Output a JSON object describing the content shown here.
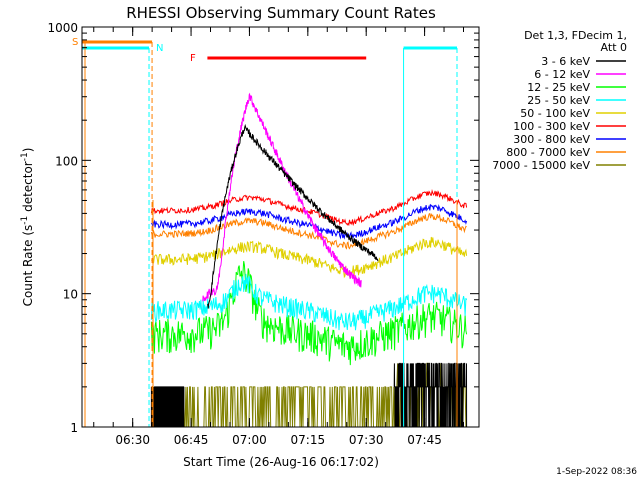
{
  "chart_data": {
    "type": "line",
    "title": "RHESSI Observing Summary Count Rates",
    "xlabel": "Start Time (26-Aug-16 06:17:02)",
    "ylabel_main": "Count Rate (s",
    "ylabel_sup1": "-1",
    "ylabel_mid": " detector",
    "ylabel_sup2": "-1",
    "ylabel_end": ")",
    "yscale": "log",
    "ylim": [
      1,
      1000
    ],
    "xlim_minutes": [
      6.283,
      7.983
    ],
    "x_ticks": [
      {
        "t": 6.5,
        "label": "06:30"
      },
      {
        "t": 6.75,
        "label": "06:45"
      },
      {
        "t": 7.0,
        "label": "07:00"
      },
      {
        "t": 7.25,
        "label": "07:15"
      },
      {
        "t": 7.5,
        "label": "07:30"
      },
      {
        "t": 7.75,
        "label": "07:45"
      }
    ],
    "y_ticks": [
      {
        "v": 1,
        "label": "1"
      },
      {
        "v": 10,
        "label": "10"
      },
      {
        "v": 100,
        "label": "100"
      },
      {
        "v": 1000,
        "label": "1000"
      }
    ],
    "legend": {
      "header1": "Det 1,3, FDecim 1,",
      "header2": "Att 0",
      "placement": "right"
    },
    "series": [
      {
        "name": "3 - 6 keV",
        "color": "#000000"
      },
      {
        "name": "6 - 12 keV",
        "color": "#ff00ff"
      },
      {
        "name": "12 - 25 keV",
        "color": "#00ff00"
      },
      {
        "name": "25 - 50 keV",
        "color": "#00ffff"
      },
      {
        "name": "50 - 100 keV",
        "color": "#e0d000"
      },
      {
        "name": "100 - 300 keV",
        "color": "#ff0000"
      },
      {
        "name": "300 - 800 keV",
        "color": "#0000ff"
      },
      {
        "name": "800 - 7000 keV",
        "color": "#ff8000"
      },
      {
        "name": "7000 - 15000 keV",
        "color": "#808000"
      }
    ],
    "flags": [
      {
        "label": "S",
        "color": "#ff8000"
      },
      {
        "label": "N",
        "color": "#00ffff"
      },
      {
        "label": "F",
        "color": "#ff0000"
      }
    ],
    "footer": "1-Sep-2022 08:36"
  }
}
